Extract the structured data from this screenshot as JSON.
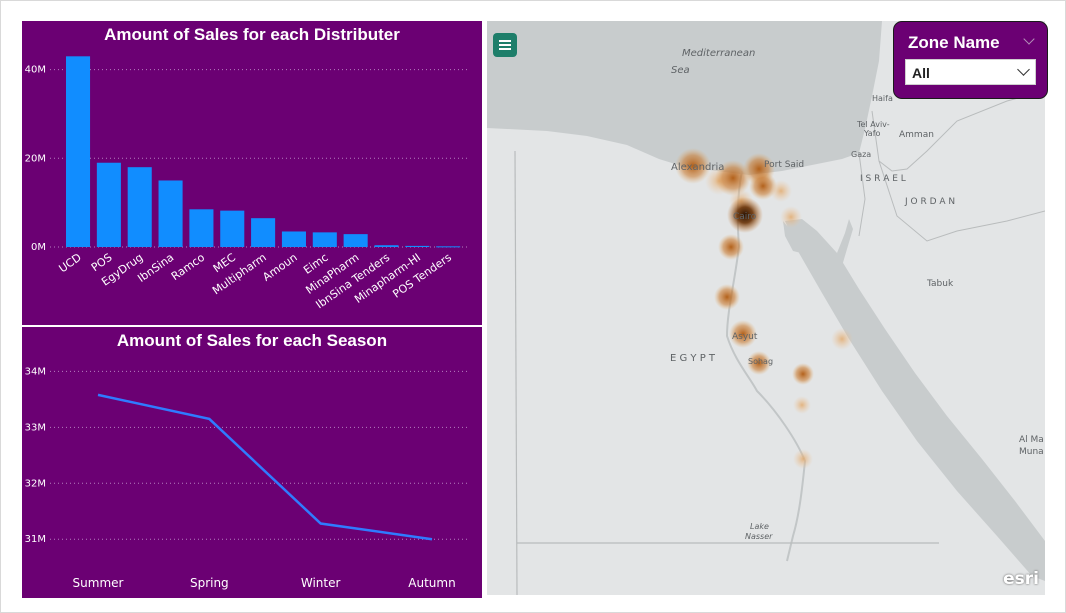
{
  "bar_chart": {
    "title": "Amount of Sales for each Distributer"
  },
  "line_chart": {
    "title": "Amount of Sales for each Season"
  },
  "map": {
    "labels": {
      "sea": "Mediterranean",
      "sea2": "Sea",
      "alexandria": "Alexandria",
      "port_said": "Port Said",
      "cairo": "Cairo",
      "asyut": "Asyut",
      "sohag": "Sohag",
      "egypt": "E G Y P T",
      "lake": "Lake",
      "lake2": "Nasser",
      "haifa": "Haifa",
      "tel_aviv": "Tel Aviv-",
      "tel_aviv2": "Yafo",
      "amman": "Amman",
      "gaza": "Gaza",
      "israel": "I S R A E L",
      "jordan": "J O R D A N",
      "tabuk": "Tabuk",
      "al_ma": "Al Ma",
      "muna": "Muna"
    },
    "attribution": "esri",
    "heat_color": "#c26a1a"
  },
  "slicer": {
    "title": "Zone Name",
    "selected_value": "All"
  },
  "colors": {
    "panel_bg": "#6b0073",
    "bar_color": "#118dff",
    "line_color": "#2f7bff"
  },
  "chart_data": [
    {
      "type": "bar",
      "title": "Amount of Sales for each Distributer",
      "categories": [
        "UCD",
        "POS",
        "EgyDrug",
        "IbnSina",
        "Ramco",
        "MEC",
        "Multipharm",
        "Amoun",
        "Eimc",
        "MinaPharm",
        "IbnSina Tenders",
        "Minapharm-HI",
        "POS Tenders"
      ],
      "values": [
        43000000,
        19000000,
        18000000,
        15000000,
        8500000,
        8200000,
        6500000,
        3500000,
        3300000,
        2900000,
        400000,
        250000,
        150000
      ],
      "ylim": [
        0,
        46000000
      ],
      "yticks": [
        0,
        20000000,
        40000000
      ],
      "ytick_labels": [
        "0M",
        "20M",
        "40M"
      ],
      "grid": true
    },
    {
      "type": "line",
      "title": "Amount of Sales for each Season",
      "categories": [
        "Summer",
        "Spring",
        "Winter",
        "Autumn"
      ],
      "values": [
        33580000,
        33150000,
        31280000,
        31000000
      ],
      "ylim": [
        30950000,
        34150000
      ],
      "yticks": [
        31000000,
        32000000,
        33000000,
        34000000
      ],
      "ytick_labels": [
        "31M",
        "32M",
        "33M",
        "34M"
      ],
      "grid": true
    }
  ]
}
